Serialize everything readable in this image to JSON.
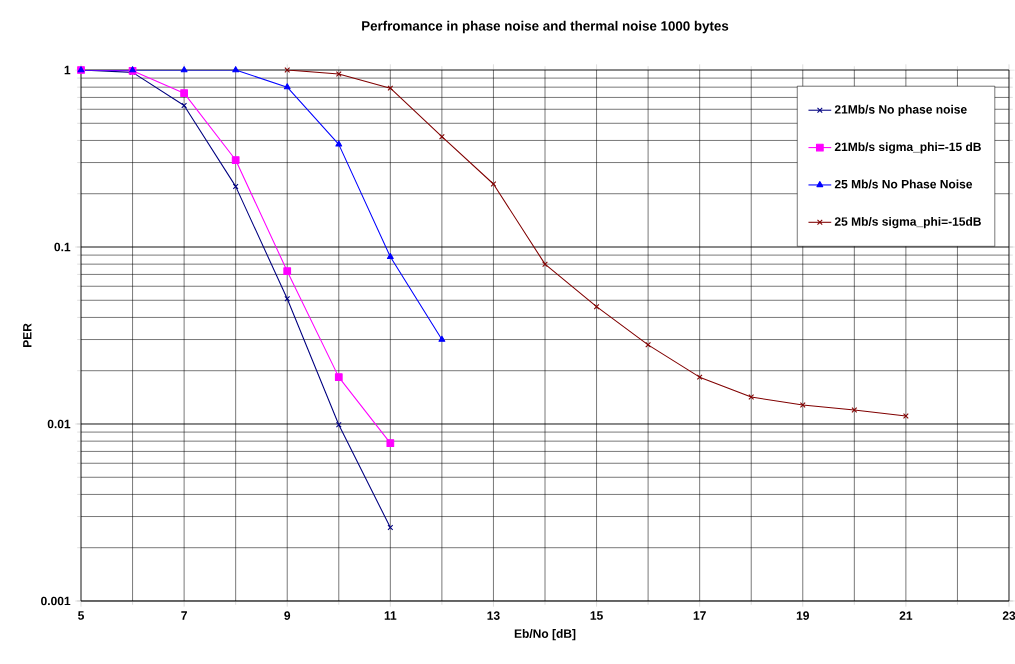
{
  "chart_data": {
    "type": "line",
    "title": "Perfromance in phase noise and thermal noise 1000 bytes",
    "xlabel": "Eb/No [dB]",
    "ylabel": "PER",
    "log": "y",
    "grid": true,
    "legend": "top right",
    "xlim": [
      5,
      23
    ],
    "xticks": [
      5,
      7,
      9,
      11,
      13,
      15,
      17,
      19,
      21,
      23
    ],
    "ylim": [
      0.001,
      1
    ],
    "yticks": [
      0.001,
      0.01,
      0.1,
      1
    ],
    "series": [
      {
        "name": "21Mb/s No phase noise",
        "color": "#000080",
        "marker": "cross",
        "x": [
          5,
          6,
          7,
          8,
          9,
          10,
          11
        ],
        "values": [
          1,
          0.97,
          0.63,
          0.22,
          0.051,
          0.0099,
          0.0026
        ]
      },
      {
        "name": "21Mb/s sigma_phi=-15 dB",
        "color": "#ff00ff",
        "marker": "square",
        "x": [
          5,
          6,
          7,
          8,
          9,
          10,
          11
        ],
        "values": [
          1,
          0.99,
          0.74,
          0.31,
          0.073,
          0.0184,
          0.0078
        ]
      },
      {
        "name": "25 Mb/s No Phase Noise",
        "color": "#0000ff",
        "marker": "triangle",
        "x": [
          5,
          6,
          7,
          8,
          9,
          10,
          11,
          12
        ],
        "values": [
          1,
          1,
          1,
          1,
          0.8,
          0.38,
          0.088,
          0.03
        ]
      },
      {
        "name": "25 Mb/s sigma_phi=-15dB",
        "color": "#800000",
        "marker": "cross",
        "x": [
          9,
          10,
          11,
          12,
          13,
          14,
          15,
          16,
          17,
          18,
          19,
          20,
          21
        ],
        "values": [
          1,
          0.95,
          0.79,
          0.42,
          0.227,
          0.08,
          0.046,
          0.028,
          0.0184,
          0.0142,
          0.0128,
          0.012,
          0.0111
        ]
      }
    ]
  }
}
